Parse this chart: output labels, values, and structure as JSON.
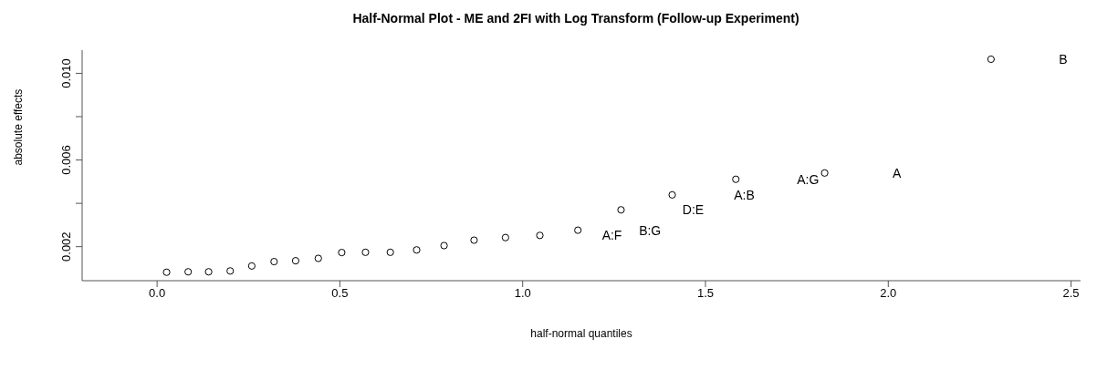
{
  "chart_data": {
    "type": "scatter",
    "title": "Half-Normal Plot - ME and 2FI with Log Transform (Follow-up Experiment)",
    "xlabel": "half-normal quantiles",
    "ylabel": "absolute effects",
    "x": [
      0.026,
      0.085,
      0.141,
      0.2,
      0.259,
      0.32,
      0.379,
      0.441,
      0.505,
      0.57,
      0.638,
      0.71,
      0.785,
      0.867,
      0.953,
      1.047,
      1.151,
      1.269,
      1.409,
      1.583,
      1.826,
      2.281
    ],
    "series": [
      {
        "color": "#000000",
        "values": [
          0.00082,
          0.00084,
          0.00084,
          0.00088,
          0.00111,
          0.00131,
          0.00135,
          0.00146,
          0.00173,
          0.00174,
          0.00174,
          0.00185,
          0.00205,
          0.0023,
          0.00242,
          0.00252,
          0.00276,
          0.0037,
          0.00439,
          0.00511,
          0.0054,
          0.01065
        ]
      }
    ],
    "xlim": [
      -0.205,
      2.526
    ],
    "ylim": [
      0.00043,
      0.01107
    ],
    "xticks": [
      {
        "value": 0,
        "label": "0.0"
      },
      0.5,
      {
        "value": 1,
        "label": "1.0"
      },
      1.5,
      {
        "value": 2,
        "label": "2.0"
      },
      2.5
    ],
    "yticks": [
      0.002,
      {
        "value": 0.004,
        "label": null
      },
      0.006,
      {
        "value": 0.008,
        "label": null
      },
      {
        "value": 0.01,
        "label": "0.010"
      }
    ],
    "annotations": [
      "A:F",
      "B:G",
      "D:E",
      "A:B",
      "A:G",
      "A",
      "B"
    ],
    "grid": false,
    "legend": false,
    "marker": "circle"
  }
}
